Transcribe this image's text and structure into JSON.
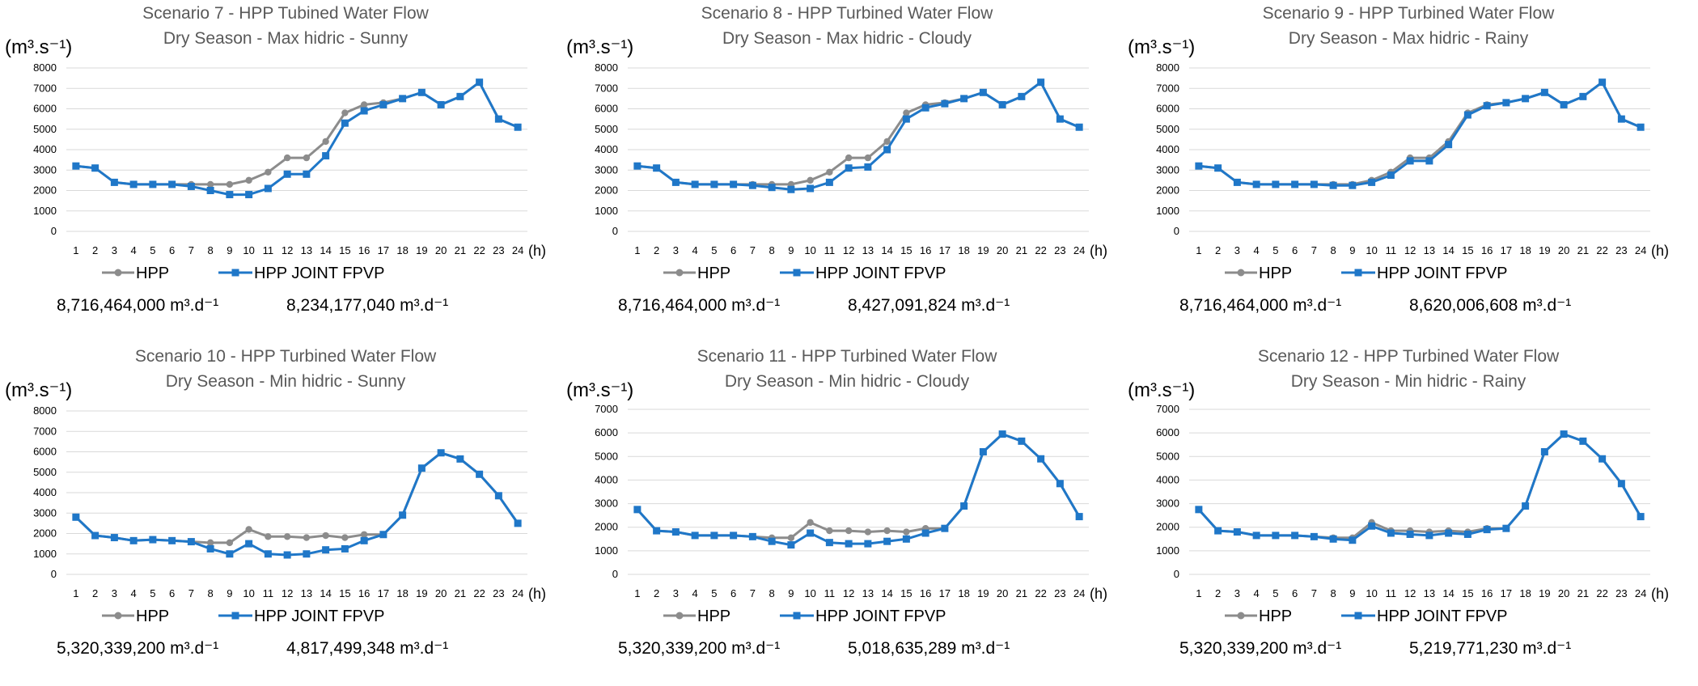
{
  "legend": {
    "hpp": "HPP",
    "joint": "HPP JOINT FPVP"
  },
  "x_unit": "(h)",
  "y_unit": "(m³.s⁻¹)",
  "colors": {
    "hpp": "#8C8C8C",
    "joint": "#1F77C8",
    "grid": "#D9D9D9"
  },
  "chart_data": [
    {
      "type": "line",
      "title": "Scenario 7 - HPP Tubined Water Flow",
      "subtitle": "Dry Season - Max hidric - Sunny",
      "ylabel": "(m³.s⁻¹)",
      "xlabel": "(h)",
      "ylim": [
        0,
        8000
      ],
      "yticks": [
        0,
        1000,
        2000,
        3000,
        4000,
        5000,
        6000,
        7000,
        8000
      ],
      "x": [
        1,
        2,
        3,
        4,
        5,
        6,
        7,
        8,
        9,
        10,
        11,
        12,
        13,
        14,
        15,
        16,
        17,
        18,
        19,
        20,
        21,
        22,
        23,
        24
      ],
      "series": [
        {
          "name": "HPP",
          "total": "8,716,464,000 m³.d⁻¹",
          "values": [
            3200,
            3100,
            2400,
            2300,
            2300,
            2300,
            2300,
            2300,
            2300,
            2500,
            2900,
            3600,
            3600,
            4400,
            5800,
            6200,
            6300,
            6500,
            6800,
            6200,
            6600,
            7300,
            5500,
            5100
          ]
        },
        {
          "name": "HPP JOINT FPVP",
          "total": "8,234,177,040 m³.d⁻¹",
          "values": [
            3200,
            3100,
            2400,
            2300,
            2300,
            2300,
            2200,
            2000,
            1800,
            1800,
            2100,
            2800,
            2800,
            3700,
            5300,
            5900,
            6200,
            6500,
            6800,
            6200,
            6600,
            7300,
            5500,
            5100
          ]
        }
      ]
    },
    {
      "type": "line",
      "title": "Scenario 8 - HPP Turbined Water Flow",
      "subtitle": "Dry Season - Max hidric - Cloudy",
      "ylabel": "(m³.s⁻¹)",
      "xlabel": "(h)",
      "ylim": [
        0,
        8000
      ],
      "yticks": [
        0,
        1000,
        2000,
        3000,
        4000,
        5000,
        6000,
        7000,
        8000
      ],
      "x": [
        1,
        2,
        3,
        4,
        5,
        6,
        7,
        8,
        9,
        10,
        11,
        12,
        13,
        14,
        15,
        16,
        17,
        18,
        19,
        20,
        21,
        22,
        23,
        24
      ],
      "series": [
        {
          "name": "HPP",
          "total": "8,716,464,000 m³.d⁻¹",
          "values": [
            3200,
            3100,
            2400,
            2300,
            2300,
            2300,
            2300,
            2300,
            2300,
            2500,
            2900,
            3600,
            3600,
            4400,
            5800,
            6200,
            6300,
            6500,
            6800,
            6200,
            6600,
            7300,
            5500,
            5100
          ]
        },
        {
          "name": "HPP JOINT FPVP",
          "total": "8,427,091,824 m³.d⁻¹",
          "values": [
            3200,
            3100,
            2400,
            2300,
            2300,
            2300,
            2250,
            2150,
            2050,
            2100,
            2400,
            3100,
            3150,
            4000,
            5500,
            6050,
            6250,
            6500,
            6800,
            6200,
            6600,
            7300,
            5500,
            5100
          ]
        }
      ]
    },
    {
      "type": "line",
      "title": "Scenario 9 - HPP Turbined Water Flow",
      "subtitle": "Dry Season - Max hidric - Rainy",
      "ylabel": "(m³.s⁻¹)",
      "xlabel": "(h)",
      "ylim": [
        0,
        8000
      ],
      "yticks": [
        0,
        1000,
        2000,
        3000,
        4000,
        5000,
        6000,
        7000,
        8000
      ],
      "x": [
        1,
        2,
        3,
        4,
        5,
        6,
        7,
        8,
        9,
        10,
        11,
        12,
        13,
        14,
        15,
        16,
        17,
        18,
        19,
        20,
        21,
        22,
        23,
        24
      ],
      "series": [
        {
          "name": "HPP",
          "total": "8,716,464,000 m³.d⁻¹",
          "values": [
            3200,
            3100,
            2400,
            2300,
            2300,
            2300,
            2300,
            2300,
            2300,
            2500,
            2900,
            3600,
            3600,
            4400,
            5800,
            6200,
            6300,
            6500,
            6800,
            6200,
            6600,
            7300,
            5500,
            5100
          ]
        },
        {
          "name": "HPP JOINT FPVP",
          "total": "8,620,006,608 m³.d⁻¹",
          "values": [
            3200,
            3100,
            2400,
            2300,
            2300,
            2300,
            2300,
            2250,
            2250,
            2400,
            2750,
            3450,
            3450,
            4250,
            5700,
            6150,
            6300,
            6500,
            6800,
            6200,
            6600,
            7300,
            5500,
            5100
          ]
        }
      ]
    },
    {
      "type": "line",
      "title": "Scenario 10 - HPP Turbined Water Flow",
      "subtitle": "Dry Season - Min hidric - Sunny",
      "ylabel": "(m³.s⁻¹)",
      "xlabel": "(h)",
      "ylim": [
        0,
        8000
      ],
      "yticks": [
        0,
        1000,
        2000,
        3000,
        4000,
        5000,
        6000,
        7000,
        8000
      ],
      "x": [
        1,
        2,
        3,
        4,
        5,
        6,
        7,
        8,
        9,
        10,
        11,
        12,
        13,
        14,
        15,
        16,
        17,
        18,
        19,
        20,
        21,
        22,
        23,
        24
      ],
      "series": [
        {
          "name": "HPP",
          "total": "5,320,339,200 m³.d⁻¹",
          "values": [
            2800,
            1900,
            1800,
            1650,
            1700,
            1650,
            1600,
            1550,
            1550,
            2200,
            1850,
            1850,
            1800,
            1900,
            1800,
            1950,
            1950,
            2900,
            5200,
            5950,
            5650,
            4900,
            3850,
            2500
          ]
        },
        {
          "name": "HPP JOINT FPVP",
          "total": "4,817,499,348 m³.d⁻¹",
          "values": [
            2800,
            1900,
            1800,
            1650,
            1700,
            1650,
            1600,
            1250,
            1000,
            1500,
            1000,
            950,
            1000,
            1200,
            1250,
            1650,
            1950,
            2900,
            5200,
            5950,
            5650,
            4900,
            3850,
            2500
          ]
        }
      ]
    },
    {
      "type": "line",
      "title": "Scenario 11 - HPP Turbined Water Flow",
      "subtitle": "Dry Season - Min hidric - Cloudy",
      "ylabel": "(m³.s⁻¹)",
      "xlabel": "(h)",
      "ylim": [
        0,
        7000
      ],
      "yticks": [
        0,
        1000,
        2000,
        3000,
        4000,
        5000,
        6000,
        7000
      ],
      "x": [
        1,
        2,
        3,
        4,
        5,
        6,
        7,
        8,
        9,
        10,
        11,
        12,
        13,
        14,
        15,
        16,
        17,
        18,
        19,
        20,
        21,
        22,
        23,
        24
      ],
      "series": [
        {
          "name": "HPP",
          "total": "5,320,339,200 m³.d⁻¹",
          "values": [
            2750,
            1850,
            1800,
            1650,
            1650,
            1650,
            1600,
            1550,
            1550,
            2200,
            1850,
            1850,
            1800,
            1850,
            1800,
            1950,
            1950,
            2900,
            5200,
            5950,
            5650,
            4900,
            3850,
            2450
          ]
        },
        {
          "name": "HPP JOINT FPVP",
          "total": "5,018,635,289 m³.d⁻¹",
          "values": [
            2750,
            1850,
            1800,
            1650,
            1650,
            1650,
            1600,
            1400,
            1250,
            1750,
            1350,
            1300,
            1300,
            1400,
            1500,
            1750,
            1950,
            2900,
            5200,
            5950,
            5650,
            4900,
            3850,
            2450
          ]
        }
      ]
    },
    {
      "type": "line",
      "title": "Scenario 12 - HPP Turbined Water Flow",
      "subtitle": "Dry Season - Min hidric - Rainy",
      "ylabel": "(m³.s⁻¹)",
      "xlabel": "(h)",
      "ylim": [
        0,
        7000
      ],
      "yticks": [
        0,
        1000,
        2000,
        3000,
        4000,
        5000,
        6000,
        7000
      ],
      "x": [
        1,
        2,
        3,
        4,
        5,
        6,
        7,
        8,
        9,
        10,
        11,
        12,
        13,
        14,
        15,
        16,
        17,
        18,
        19,
        20,
        21,
        22,
        23,
        24
      ],
      "series": [
        {
          "name": "HPP",
          "total": "5,320,339,200 m³.d⁻¹",
          "values": [
            2750,
            1850,
            1800,
            1650,
            1650,
            1650,
            1600,
            1550,
            1550,
            2200,
            1850,
            1850,
            1800,
            1850,
            1800,
            1950,
            1950,
            2900,
            5200,
            5950,
            5650,
            4900,
            3850,
            2450
          ]
        },
        {
          "name": "HPP JOINT FPVP",
          "total": "5,219,771,230 m³.d⁻¹",
          "values": [
            2750,
            1850,
            1800,
            1650,
            1650,
            1650,
            1600,
            1500,
            1450,
            2050,
            1750,
            1700,
            1650,
            1750,
            1700,
            1900,
            1950,
            2900,
            5200,
            5950,
            5650,
            4900,
            3850,
            2450
          ]
        }
      ]
    }
  ]
}
